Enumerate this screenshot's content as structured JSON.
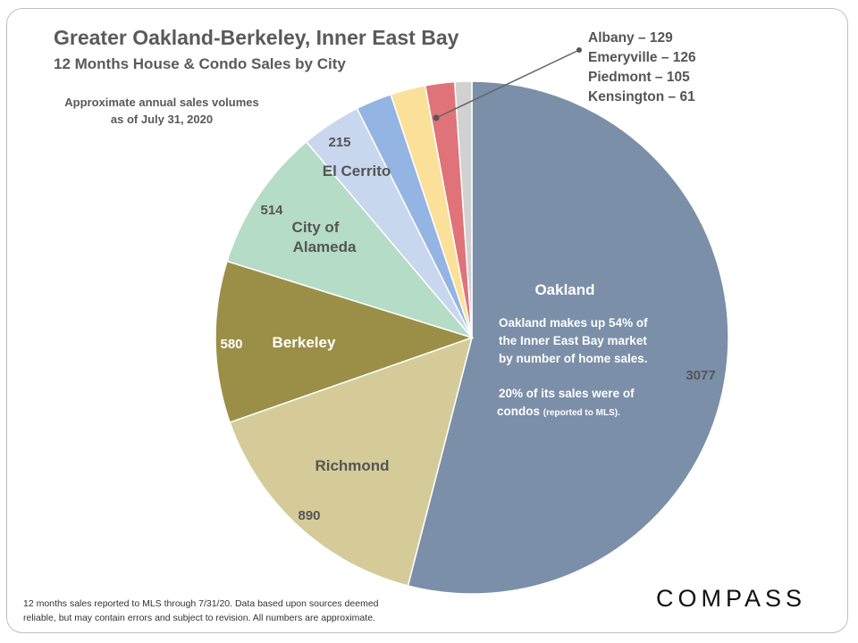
{
  "header": {
    "title": "Greater Oakland-Berkeley, Inner East Bay",
    "subtitle": "12 Months  House  & Condo Sales by City"
  },
  "note": {
    "line1": "Approximate annual sales volumes",
    "line2": "as of July 31, 2020"
  },
  "callout": {
    "albany": "Albany – 129",
    "emeryville": "Emeryville – 126",
    "piedmont": "Piedmont – 105",
    "kensington": "Kensington – 61"
  },
  "annotation": {
    "city": "Oakland",
    "line1": "Oakland makes up 54% of",
    "line2": "the Inner East Bay market",
    "line3": "by number of home sales.",
    "line4": "20% of its sales were of",
    "line5_bold": "condos ",
    "line5_small": "(reported to MLS)."
  },
  "footer": {
    "line1": "12 months sales reported to MLS through 7/31/20. Data based upon sources deemed",
    "line2": "reliable, but may contain errors and subject to revision. All numbers are approximate."
  },
  "brand": "COMPASS",
  "chart_data": {
    "type": "pie",
    "title": "Greater Oakland-Berkeley, Inner East Bay",
    "subtitle": "12 Months  House  & Condo Sales by City",
    "slices": [
      {
        "name": "Oakland",
        "value": 3077,
        "color": "#7b8fa9",
        "value_label": "3077",
        "name_label": "Oakland"
      },
      {
        "name": "Richmond",
        "value": 890,
        "color": "#d4cb99",
        "value_label": "890",
        "name_label": "Richmond"
      },
      {
        "name": "Berkeley",
        "value": 580,
        "color": "#9b8f47",
        "value_label": "580",
        "name_label": "Berkeley"
      },
      {
        "name": "City of Alameda",
        "value": 514,
        "color": "#b5dcc6",
        "value_label": "514",
        "name_label": "City of Alameda"
      },
      {
        "name": "El Cerrito",
        "value": 215,
        "color": "#c8d7ee",
        "value_label": "215",
        "name_label": "El Cerrito"
      },
      {
        "name": "Albany",
        "value": 129,
        "color": "#94b4e3",
        "value_label": "",
        "name_label": ""
      },
      {
        "name": "Emeryville",
        "value": 126,
        "color": "#fbe09a",
        "value_label": "",
        "name_label": ""
      },
      {
        "name": "Piedmont",
        "value": 105,
        "color": "#df7379",
        "value_label": "",
        "name_label": ""
      },
      {
        "name": "Kensington",
        "value": 61,
        "color": "#d1d1d1",
        "value_label": "",
        "name_label": ""
      }
    ]
  }
}
